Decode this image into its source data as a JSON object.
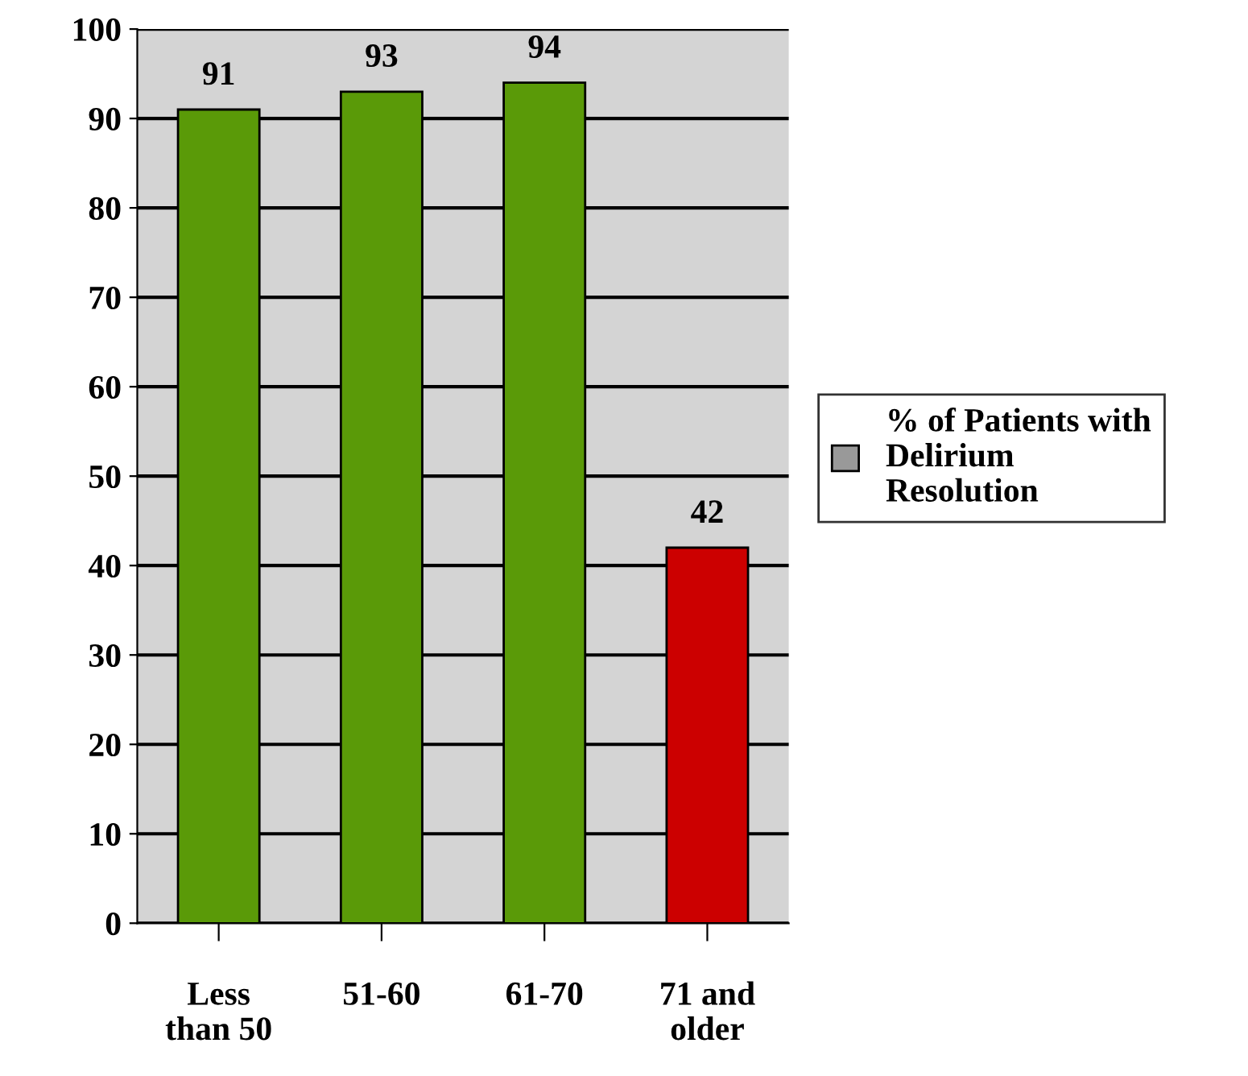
{
  "chart_data": {
    "type": "bar",
    "categories": [
      "Less\nthan 50",
      "51-60",
      "61-70",
      "71 and\nolder"
    ],
    "series": [
      {
        "name": "% of Patients with\nDelirium\nResolution",
        "color": "#999999",
        "colors": [
          "#5a9a08",
          "#5a9a08",
          "#5a9a08",
          "#cc0000"
        ],
        "values": [
          91,
          93,
          94,
          42
        ]
      }
    ],
    "ylim": [
      0,
      100
    ],
    "yticks": [
      0,
      10,
      20,
      30,
      40,
      50,
      60,
      70,
      80,
      90,
      100
    ],
    "grid": "y",
    "legend": "right",
    "data_labels": true
  }
}
